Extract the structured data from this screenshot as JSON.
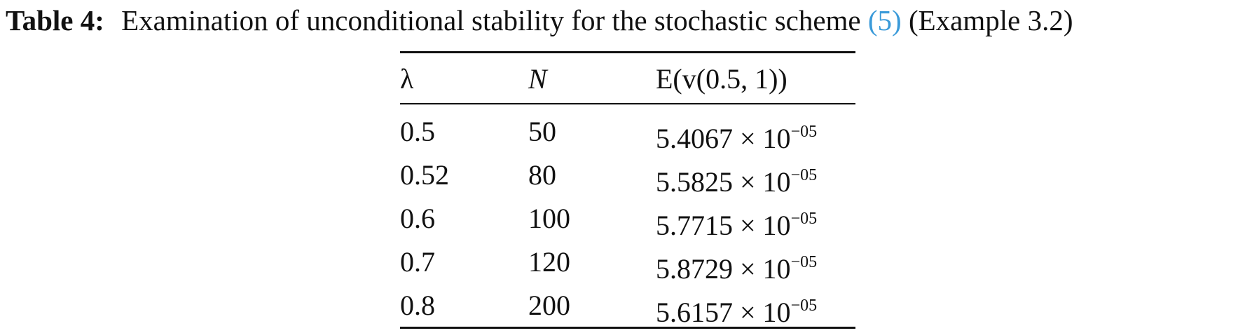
{
  "caption": {
    "label": "Table 4:",
    "text": "Examination of unconditional stability for the stochastic scheme",
    "ref": "(5)",
    "suffix": "(Example 3.2)"
  },
  "table": {
    "header": [
      "λ",
      "N",
      "E(v(0.5, 1))"
    ],
    "rows": [
      {
        "lambda": "0.5",
        "N": "50",
        "E": {
          "base": "5.4067 × 10",
          "exp": "−05"
        }
      },
      {
        "lambda": "0.52",
        "N": "80",
        "E": {
          "base": "5.5825 × 10",
          "exp": "−05"
        }
      },
      {
        "lambda": "0.6",
        "N": "100",
        "E": {
          "base": "5.7715 × 10",
          "exp": "−05"
        }
      },
      {
        "lambda": "0.7",
        "N": "120",
        "E": {
          "base": "5.8729 × 10",
          "exp": "−05"
        }
      },
      {
        "lambda": "0.8",
        "N": "200",
        "E": {
          "base": "5.6157 × 10",
          "exp": "−05"
        }
      }
    ]
  }
}
